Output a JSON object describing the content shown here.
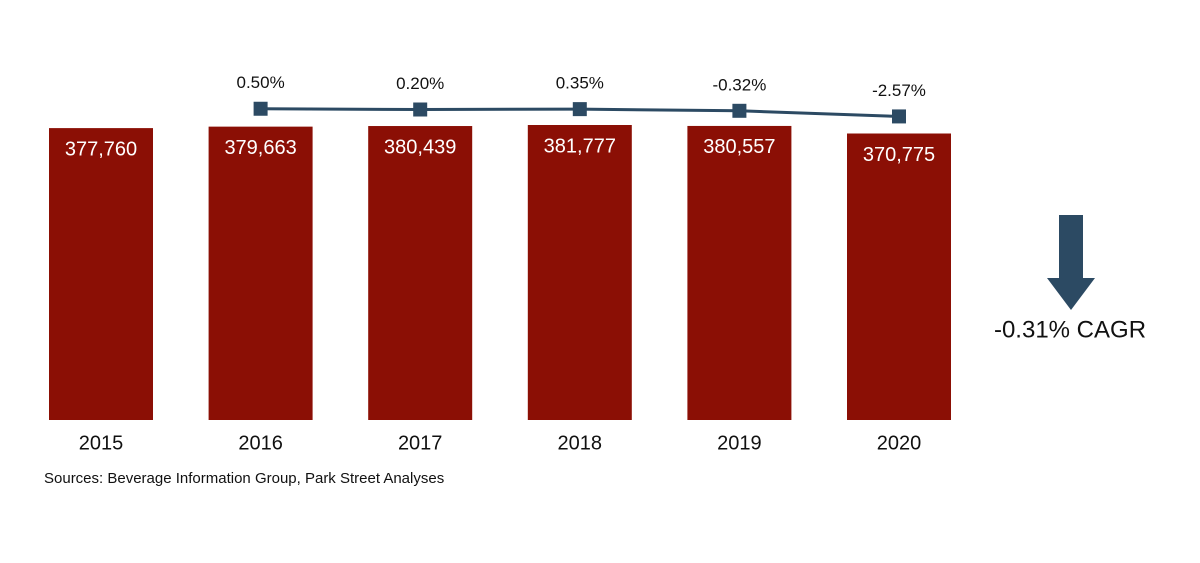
{
  "chart_data": {
    "type": "bar",
    "categories": [
      "2015",
      "2016",
      "2017",
      "2018",
      "2019",
      "2020"
    ],
    "series": [
      {
        "type": "bar",
        "color": "#8b0f05",
        "values": [
          377760,
          379663,
          380439,
          381777,
          380557,
          370775
        ],
        "value_labels": [
          "377,760",
          "379,663",
          "380,439",
          "381,777",
          "380,557",
          "370,775"
        ]
      },
      {
        "type": "line",
        "color": "#2c4a63",
        "values": [
          null,
          0.5,
          0.2,
          0.35,
          -0.32,
          -2.57
        ],
        "value_labels": [
          null,
          "0.50%",
          "0.20%",
          "0.35%",
          "-0.32%",
          "-2.57%"
        ]
      }
    ],
    "annotation": "-0.31% CAGR",
    "source": "Sources: Beverage Information Group, Park Street Analyses"
  }
}
